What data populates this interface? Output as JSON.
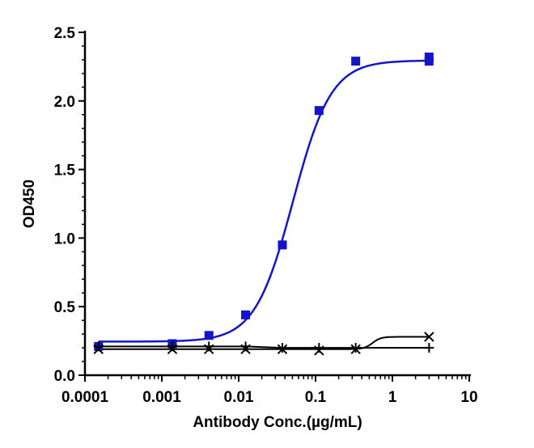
{
  "chart_data": {
    "type": "scatter",
    "title": "",
    "xlabel": "Antibody Conc.(µg/mL)",
    "ylabel": "OD450",
    "x_scale": "log",
    "xlim": [
      0.0001,
      10
    ],
    "ylim": [
      0,
      2.5
    ],
    "x_ticks": [
      0.0001,
      0.001,
      0.01,
      0.1,
      1,
      10
    ],
    "x_tick_labels": [
      "0.0001",
      "0.001",
      "0.01",
      "0.1",
      "1",
      "10"
    ],
    "y_ticks": [
      0,
      0.5,
      1,
      1.5,
      2,
      2.5
    ],
    "y_tick_labels": [
      "0.0",
      "0.5",
      "1.0",
      "1.5",
      "2.0",
      "2.5"
    ],
    "grid": false,
    "legend": "none",
    "series": [
      {
        "marker": "square",
        "color": "#1414c8",
        "fit": "sigmoid",
        "points": [
          {
            "x": 0.00015,
            "y": 0.21
          },
          {
            "x": 0.00137,
            "y": 0.23
          },
          {
            "x": 0.0041,
            "y": 0.29
          },
          {
            "x": 0.0123,
            "y": 0.44
          },
          {
            "x": 0.037,
            "y": 0.95
          },
          {
            "x": 0.111,
            "y": 1.93
          },
          {
            "x": 0.333,
            "y": 2.29
          },
          {
            "x": 3.0,
            "y": 2.32
          },
          {
            "x": 3.0,
            "y": 2.29
          }
        ]
      },
      {
        "marker": "plus",
        "color": "#000000",
        "fit": "line",
        "points": [
          {
            "x": 0.00015,
            "y": 0.21
          },
          {
            "x": 0.00137,
            "y": 0.21
          },
          {
            "x": 0.0041,
            "y": 0.21
          },
          {
            "x": 0.0123,
            "y": 0.21
          },
          {
            "x": 0.037,
            "y": 0.2
          },
          {
            "x": 0.111,
            "y": 0.2
          },
          {
            "x": 0.333,
            "y": 0.2
          },
          {
            "x": 3.0,
            "y": 0.2
          }
        ]
      },
      {
        "marker": "cross",
        "color": "#000000",
        "fit": "curve",
        "points": [
          {
            "x": 0.00015,
            "y": 0.19
          },
          {
            "x": 0.00137,
            "y": 0.19
          },
          {
            "x": 0.0041,
            "y": 0.19
          },
          {
            "x": 0.0123,
            "y": 0.19
          },
          {
            "x": 0.037,
            "y": 0.19
          },
          {
            "x": 0.111,
            "y": 0.18
          },
          {
            "x": 0.333,
            "y": 0.19
          },
          {
            "x": 3.0,
            "y": 0.28
          }
        ]
      }
    ]
  }
}
